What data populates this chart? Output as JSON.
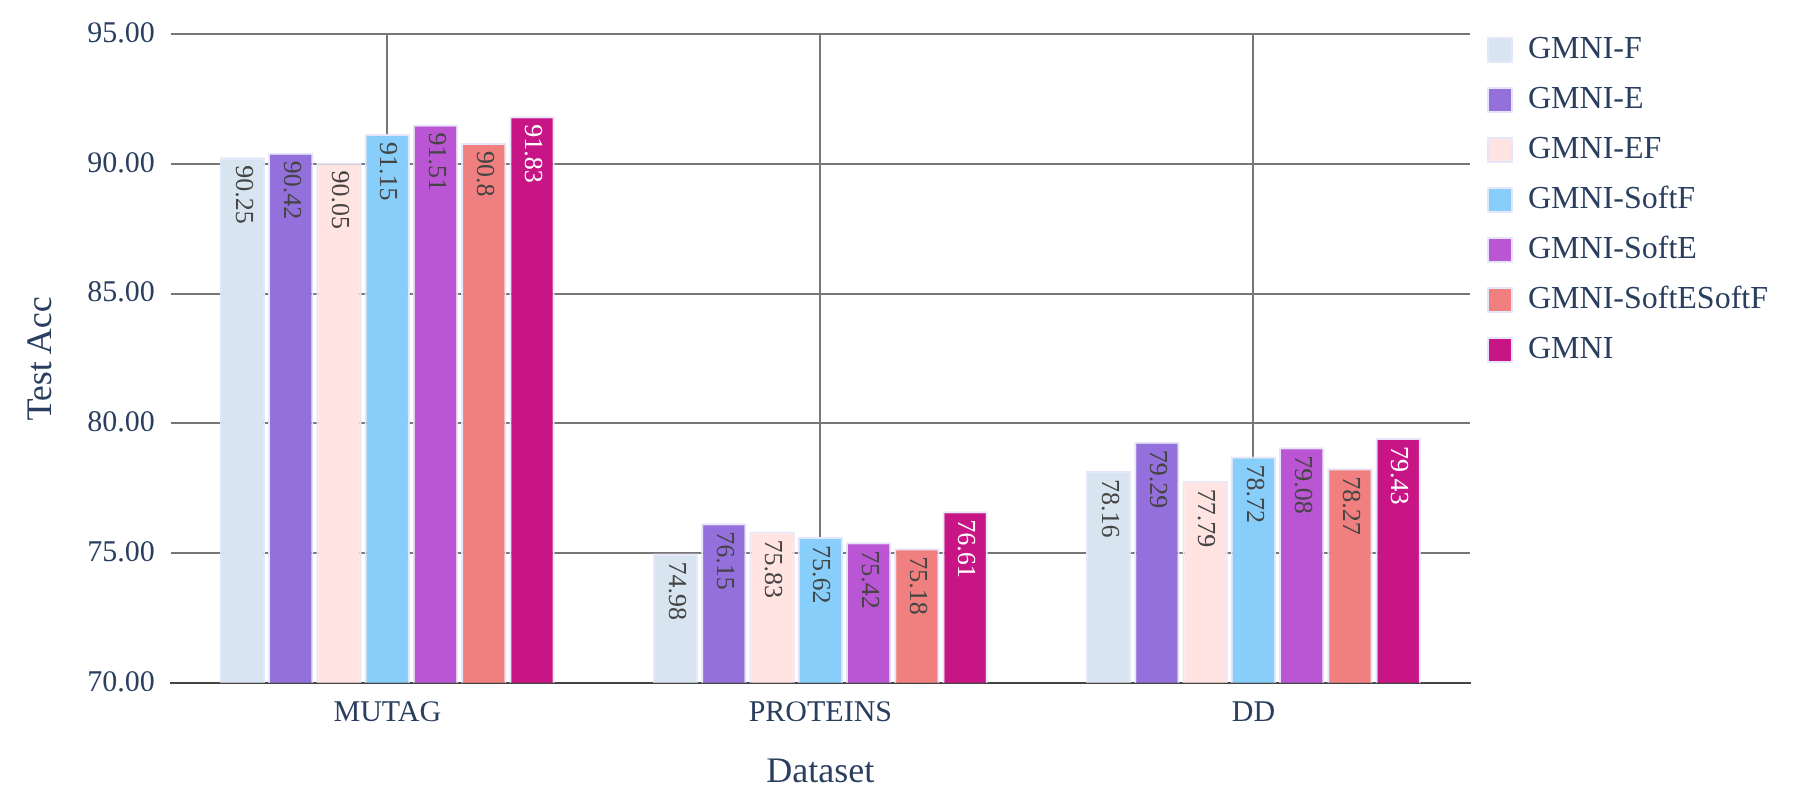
{
  "chart_data": {
    "type": "bar",
    "xlabel": "Dataset",
    "ylabel": "Test Acc",
    "categories": [
      "MUTAG",
      "PROTEINS",
      "DD"
    ],
    "series": [
      {
        "name": "GMNI-F",
        "color": "#d8e4ef",
        "values": [
          90.25,
          74.98,
          78.16
        ]
      },
      {
        "name": "GMNI-E",
        "color": "#9370db",
        "values": [
          90.42,
          76.15,
          79.29
        ]
      },
      {
        "name": "GMNI-EF",
        "color": "#ffe4e1",
        "values": [
          90.05,
          75.83,
          77.79
        ]
      },
      {
        "name": "GMNI-SoftF",
        "color": "#87cefa",
        "values": [
          91.15,
          75.62,
          78.72
        ]
      },
      {
        "name": "GMNI-SoftE",
        "color": "#ba55d3",
        "values": [
          91.51,
          75.42,
          79.08
        ]
      },
      {
        "name": "GMNI-SoftESoftF",
        "color": "#f08080",
        "values": [
          90.8,
          75.18,
          78.27
        ]
      },
      {
        "name": "GMNI",
        "color": "#c71585",
        "values": [
          91.83,
          76.61,
          79.43
        ]
      }
    ],
    "ylim": [
      70,
      95
    ],
    "yticks": [
      {
        "value": 70,
        "label": "70.00"
      },
      {
        "value": 75,
        "label": "75.00"
      },
      {
        "value": 80,
        "label": "80.00"
      },
      {
        "value": 85,
        "label": "85.00"
      },
      {
        "value": 90,
        "label": "90.00"
      },
      {
        "value": 95,
        "label": "95.00"
      }
    ],
    "grid": true,
    "legend": "top right",
    "data_labels": true
  }
}
